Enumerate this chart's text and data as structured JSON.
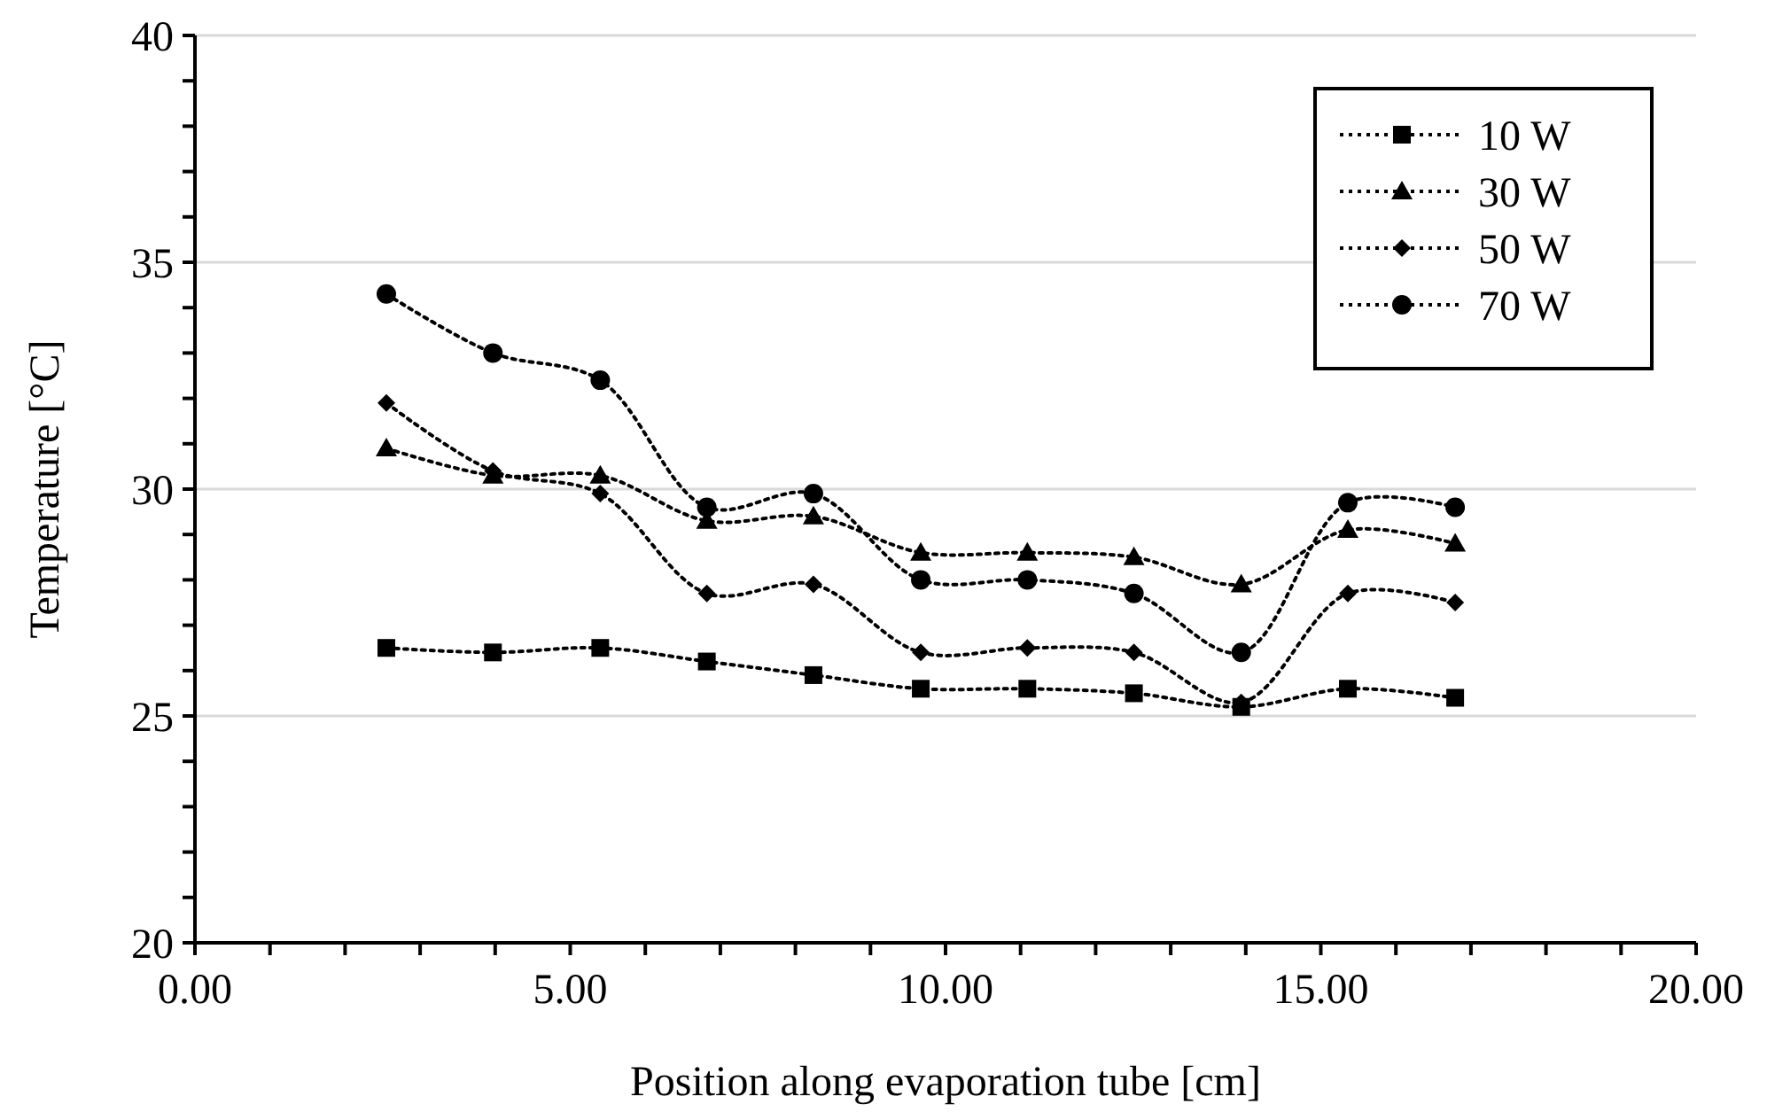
{
  "chart_data": {
    "type": "line",
    "xlabel": "Position along evaporation tube [cm]",
    "ylabel": "Temperature [°C]",
    "x": [
      2.55,
      3.97,
      5.4,
      6.82,
      8.24,
      9.67,
      11.09,
      12.51,
      13.94,
      15.36,
      16.79
    ],
    "xlim": [
      0,
      20
    ],
    "ylim": [
      20,
      40
    ],
    "xticks": [
      {
        "value": 0,
        "label": "0.00"
      },
      {
        "value": 1,
        "label": null
      },
      {
        "value": 2,
        "label": null
      },
      {
        "value": 3,
        "label": null
      },
      {
        "value": 4,
        "label": null
      },
      {
        "value": 5,
        "label": "5.00"
      },
      {
        "value": 6,
        "label": null
      },
      {
        "value": 7,
        "label": null
      },
      {
        "value": 8,
        "label": null
      },
      {
        "value": 9,
        "label": null
      },
      {
        "value": 10,
        "label": "10.00"
      },
      {
        "value": 11,
        "label": null
      },
      {
        "value": 12,
        "label": null
      },
      {
        "value": 13,
        "label": null
      },
      {
        "value": 14,
        "label": null
      },
      {
        "value": 15,
        "label": "15.00"
      },
      {
        "value": 16,
        "label": null
      },
      {
        "value": 17,
        "label": null
      },
      {
        "value": 18,
        "label": null
      },
      {
        "value": 19,
        "label": null
      },
      {
        "value": 20,
        "label": "20.00"
      }
    ],
    "yticks": [
      20,
      {
        "value": 21,
        "label": null
      },
      {
        "value": 22,
        "label": null
      },
      {
        "value": 23,
        "label": null
      },
      {
        "value": 24,
        "label": null
      },
      25,
      {
        "value": 26,
        "label": null
      },
      {
        "value": 27,
        "label": null
      },
      {
        "value": 28,
        "label": null
      },
      {
        "value": 29,
        "label": null
      },
      30,
      {
        "value": 31,
        "label": null
      },
      {
        "value": 32,
        "label": null
      },
      {
        "value": 33,
        "label": null
      },
      {
        "value": 34,
        "label": null
      },
      35,
      {
        "value": 36,
        "label": null
      },
      {
        "value": 37,
        "label": null
      },
      {
        "value": 38,
        "label": null
      },
      {
        "value": 39,
        "label": null
      },
      40
    ],
    "grid": "y",
    "legend": "top right",
    "line_style": "dotted",
    "series": [
      {
        "name": "10 W",
        "color": "#000000",
        "marker": "square",
        "values": [
          26.5,
          26.4,
          26.5,
          26.2,
          25.9,
          25.6,
          25.6,
          25.5,
          25.2,
          25.6,
          25.4
        ]
      },
      {
        "name": "30 W",
        "color": "#000000",
        "marker": "triangle",
        "values": [
          30.9,
          30.3,
          30.3,
          29.3,
          29.4,
          28.6,
          28.6,
          28.5,
          27.9,
          29.1,
          28.8
        ]
      },
      {
        "name": "50 W",
        "color": "#000000",
        "marker": "diamond",
        "values": [
          31.9,
          30.4,
          29.9,
          27.7,
          27.9,
          26.4,
          26.5,
          26.4,
          25.3,
          27.7,
          27.5
        ]
      },
      {
        "name": "70 W",
        "color": "#000000",
        "marker": "circle",
        "values": [
          34.3,
          33.0,
          32.4,
          29.6,
          29.9,
          28.0,
          28.0,
          27.7,
          26.4,
          29.7,
          29.6
        ]
      }
    ]
  }
}
